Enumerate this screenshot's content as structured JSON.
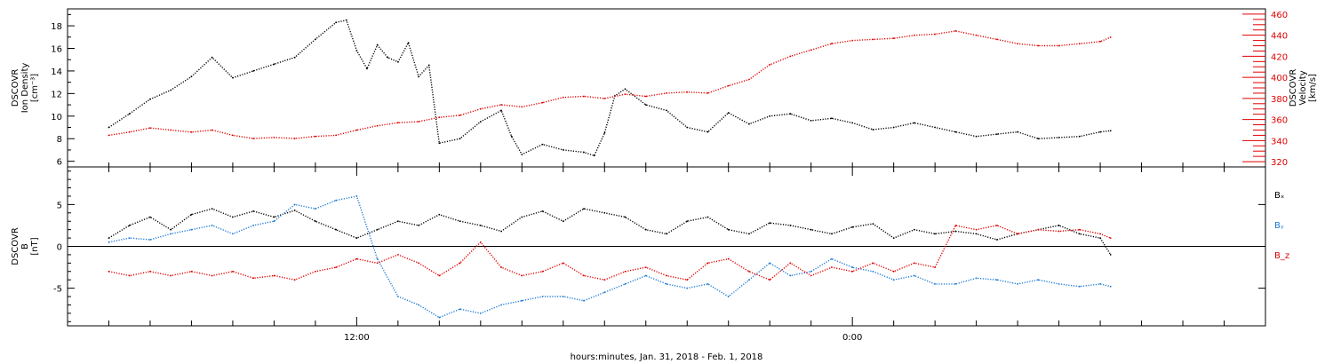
{
  "chart_data": [
    {
      "type": "scatter",
      "panel": "plasma",
      "ylabel_left": [
        "DSCOVR",
        "Ion Density",
        "[cm⁻³]"
      ],
      "ylabel_right": [
        "DSCOVR",
        "Velocity",
        "[km/s]"
      ],
      "ylim_left": [
        5.5,
        19.5
      ],
      "ylim_right": [
        315,
        465
      ],
      "yticks_left": [
        6,
        8,
        10,
        12,
        14,
        16,
        18
      ],
      "yticks_right": [
        320,
        340,
        360,
        380,
        400,
        420,
        440,
        460
      ],
      "series": [
        {
          "name": "Ion Density",
          "axis": "left",
          "color": "#000000",
          "points": [
            [
              2,
              9.0
            ],
            [
              3,
              10.2
            ],
            [
              4,
              11.5
            ],
            [
              5,
              12.3
            ],
            [
              6,
              13.5
            ],
            [
              7,
              15.2
            ],
            [
              8,
              13.4
            ],
            [
              9,
              14.0
            ],
            [
              10,
              14.6
            ],
            [
              11,
              15.2
            ],
            [
              12,
              16.8
            ],
            [
              13,
              18.3
            ],
            [
              13.5,
              18.5
            ],
            [
              14,
              15.8
            ],
            [
              14.5,
              14.2
            ],
            [
              15,
              16.3
            ],
            [
              15.5,
              15.2
            ],
            [
              16,
              14.8
            ],
            [
              16.5,
              16.5
            ],
            [
              17,
              13.5
            ],
            [
              17.5,
              14.5
            ],
            [
              18,
              7.6
            ],
            [
              19,
              8.0
            ],
            [
              20,
              9.5
            ],
            [
              21,
              10.5
            ],
            [
              21.5,
              8.2
            ],
            [
              22,
              6.6
            ],
            [
              23,
              7.5
            ],
            [
              24,
              7.0
            ],
            [
              25,
              6.8
            ],
            [
              25.5,
              6.5
            ],
            [
              26,
              8.5
            ],
            [
              26.5,
              11.8
            ],
            [
              27,
              12.4
            ],
            [
              28,
              11.0
            ],
            [
              29,
              10.5
            ],
            [
              30,
              9.0
            ],
            [
              31,
              8.6
            ],
            [
              32,
              10.3
            ],
            [
              33,
              9.3
            ],
            [
              34,
              10.0
            ],
            [
              35,
              10.2
            ],
            [
              36,
              9.6
            ],
            [
              37,
              9.8
            ],
            [
              38,
              9.4
            ],
            [
              39,
              8.8
            ],
            [
              40,
              9.0
            ],
            [
              41,
              9.4
            ],
            [
              42,
              9.0
            ],
            [
              43,
              8.6
            ],
            [
              44,
              8.2
            ],
            [
              45,
              8.4
            ],
            [
              46,
              8.6
            ],
            [
              47,
              8.0
            ],
            [
              48,
              8.1
            ],
            [
              49,
              8.2
            ],
            [
              50,
              8.6
            ],
            [
              50.5,
              8.7
            ]
          ]
        },
        {
          "name": "Velocity",
          "axis": "right",
          "color": "#e00000",
          "points": [
            [
              2,
              345
            ],
            [
              3,
              348
            ],
            [
              4,
              352
            ],
            [
              5,
              350
            ],
            [
              6,
              348
            ],
            [
              7,
              350
            ],
            [
              8,
              345
            ],
            [
              9,
              342
            ],
            [
              10,
              343
            ],
            [
              11,
              342
            ],
            [
              12,
              344
            ],
            [
              13,
              345
            ],
            [
              14,
              350
            ],
            [
              15,
              354
            ],
            [
              16,
              357
            ],
            [
              17,
              358
            ],
            [
              18,
              362
            ],
            [
              19,
              364
            ],
            [
              20,
              370
            ],
            [
              21,
              374
            ],
            [
              22,
              372
            ],
            [
              23,
              376
            ],
            [
              24,
              381
            ],
            [
              25,
              382
            ],
            [
              26,
              380
            ],
            [
              27,
              384
            ],
            [
              28,
              382
            ],
            [
              29,
              385
            ],
            [
              30,
              386
            ],
            [
              31,
              385
            ],
            [
              32,
              392
            ],
            [
              33,
              398
            ],
            [
              34,
              412
            ],
            [
              35,
              420
            ],
            [
              36,
              426
            ],
            [
              37,
              432
            ],
            [
              38,
              435
            ],
            [
              39,
              436
            ],
            [
              40,
              437
            ],
            [
              41,
              440
            ],
            [
              42,
              441
            ],
            [
              43,
              444
            ],
            [
              44,
              440
            ],
            [
              45,
              436
            ],
            [
              46,
              432
            ],
            [
              47,
              430
            ],
            [
              48,
              430
            ],
            [
              49,
              432
            ],
            [
              50,
              434
            ],
            [
              50.5,
              438
            ]
          ]
        }
      ]
    },
    {
      "type": "scatter",
      "panel": "magnetic-field",
      "ylabel_left": [
        "DSCOVR",
        "B",
        "[nT]"
      ],
      "ylim": [
        -9.5,
        9.5
      ],
      "yticks": [
        -5,
        0,
        5
      ],
      "zero_line": true,
      "legend": [
        {
          "label": "Bₓ",
          "color": "#000000"
        },
        {
          "label": "Bᵧ",
          "color": "#1a7ad6"
        },
        {
          "label": "B_z",
          "color": "#e00000"
        }
      ],
      "series": [
        {
          "name": "Bx",
          "color": "#000000",
          "points": [
            [
              2,
              1.0
            ],
            [
              3,
              2.5
            ],
            [
              4,
              3.5
            ],
            [
              5,
              2.0
            ],
            [
              6,
              3.8
            ],
            [
              7,
              4.5
            ],
            [
              8,
              3.5
            ],
            [
              9,
              4.2
            ],
            [
              10,
              3.5
            ],
            [
              11,
              4.3
            ],
            [
              12,
              3.0
            ],
            [
              13,
              2.0
            ],
            [
              14,
              1.0
            ],
            [
              15,
              2.0
            ],
            [
              16,
              3.0
            ],
            [
              17,
              2.5
            ],
            [
              18,
              3.8
            ],
            [
              19,
              3.0
            ],
            [
              20,
              2.5
            ],
            [
              21,
              1.8
            ],
            [
              22,
              3.5
            ],
            [
              23,
              4.2
            ],
            [
              24,
              3.0
            ],
            [
              25,
              4.5
            ],
            [
              26,
              4.0
            ],
            [
              27,
              3.5
            ],
            [
              28,
              2.0
            ],
            [
              29,
              1.5
            ],
            [
              30,
              3.0
            ],
            [
              31,
              3.5
            ],
            [
              32,
              2.0
            ],
            [
              33,
              1.5
            ],
            [
              34,
              2.8
            ],
            [
              35,
              2.5
            ],
            [
              36,
              2.0
            ],
            [
              37,
              1.5
            ],
            [
              38,
              2.3
            ],
            [
              39,
              2.7
            ],
            [
              40,
              1.0
            ],
            [
              41,
              2.0
            ],
            [
              42,
              1.5
            ],
            [
              43,
              1.8
            ],
            [
              44,
              1.5
            ],
            [
              45,
              0.8
            ],
            [
              46,
              1.5
            ],
            [
              47,
              2.0
            ],
            [
              48,
              2.5
            ],
            [
              49,
              1.5
            ],
            [
              50,
              1.0
            ],
            [
              50.5,
              -1.0
            ]
          ]
        },
        {
          "name": "By",
          "color": "#1a7ad6",
          "points": [
            [
              2,
              0.5
            ],
            [
              3,
              1.0
            ],
            [
              4,
              0.8
            ],
            [
              5,
              1.5
            ],
            [
              6,
              2.0
            ],
            [
              7,
              2.5
            ],
            [
              8,
              1.5
            ],
            [
              9,
              2.5
            ],
            [
              10,
              3.0
            ],
            [
              11,
              5.0
            ],
            [
              12,
              4.5
            ],
            [
              13,
              5.5
            ],
            [
              14,
              6.0
            ],
            [
              15,
              -1.5
            ],
            [
              16,
              -6.0
            ],
            [
              17,
              -7.0
            ],
            [
              18,
              -8.5
            ],
            [
              19,
              -7.5
            ],
            [
              20,
              -8.0
            ],
            [
              21,
              -7.0
            ],
            [
              22,
              -6.5
            ],
            [
              23,
              -6.0
            ],
            [
              24,
              -6.0
            ],
            [
              25,
              -6.5
            ],
            [
              26,
              -5.5
            ],
            [
              27,
              -4.5
            ],
            [
              28,
              -3.5
            ],
            [
              29,
              -4.5
            ],
            [
              30,
              -5.0
            ],
            [
              31,
              -4.5
            ],
            [
              32,
              -6.0
            ],
            [
              33,
              -4.0
            ],
            [
              34,
              -2.0
            ],
            [
              35,
              -3.5
            ],
            [
              36,
              -3.0
            ],
            [
              37,
              -1.5
            ],
            [
              38,
              -2.5
            ],
            [
              39,
              -3.0
            ],
            [
              40,
              -4.0
            ],
            [
              41,
              -3.5
            ],
            [
              42,
              -4.5
            ],
            [
              43,
              -4.5
            ],
            [
              44,
              -3.8
            ],
            [
              45,
              -4.0
            ],
            [
              46,
              -4.5
            ],
            [
              47,
              -4.0
            ],
            [
              48,
              -4.5
            ],
            [
              49,
              -4.8
            ],
            [
              50,
              -4.5
            ],
            [
              50.5,
              -4.8
            ]
          ]
        },
        {
          "name": "Bz",
          "color": "#e00000",
          "points": [
            [
              2,
              -3.0
            ],
            [
              3,
              -3.5
            ],
            [
              4,
              -3.0
            ],
            [
              5,
              -3.5
            ],
            [
              6,
              -3.0
            ],
            [
              7,
              -3.5
            ],
            [
              8,
              -3.0
            ],
            [
              9,
              -3.8
            ],
            [
              10,
              -3.5
            ],
            [
              11,
              -4.0
            ],
            [
              12,
              -3.0
            ],
            [
              13,
              -2.5
            ],
            [
              14,
              -1.5
            ],
            [
              15,
              -2.0
            ],
            [
              16,
              -1.0
            ],
            [
              17,
              -2.0
            ],
            [
              18,
              -3.5
            ],
            [
              19,
              -2.0
            ],
            [
              20,
              0.5
            ],
            [
              21,
              -2.5
            ],
            [
              22,
              -3.5
            ],
            [
              23,
              -3.0
            ],
            [
              24,
              -2.0
            ],
            [
              25,
              -3.5
            ],
            [
              26,
              -4.0
            ],
            [
              27,
              -3.0
            ],
            [
              28,
              -2.5
            ],
            [
              29,
              -3.5
            ],
            [
              30,
              -4.0
            ],
            [
              31,
              -2.0
            ],
            [
              32,
              -1.5
            ],
            [
              33,
              -3.0
            ],
            [
              34,
              -4.0
            ],
            [
              35,
              -2.0
            ],
            [
              36,
              -3.5
            ],
            [
              37,
              -2.5
            ],
            [
              38,
              -3.0
            ],
            [
              39,
              -2.0
            ],
            [
              40,
              -3.0
            ],
            [
              41,
              -2.0
            ],
            [
              42,
              -2.5
            ],
            [
              43,
              2.5
            ],
            [
              44,
              2.0
            ],
            [
              45,
              2.5
            ],
            [
              46,
              1.5
            ],
            [
              47,
              2.0
            ],
            [
              48,
              1.8
            ],
            [
              49,
              2.0
            ],
            [
              50,
              1.5
            ],
            [
              50.5,
              1.0
            ]
          ]
        }
      ]
    }
  ],
  "xaxis": {
    "label": "hours:minutes, Jan. 31, 2018 - Feb.  1, 2018",
    "range_hours": [
      0,
      58
    ],
    "tick_labels": [
      {
        "hour": 14,
        "label": "12:00"
      },
      {
        "hour": 38,
        "label": "0:00"
      }
    ],
    "minor_tick_every_hours": 2
  }
}
